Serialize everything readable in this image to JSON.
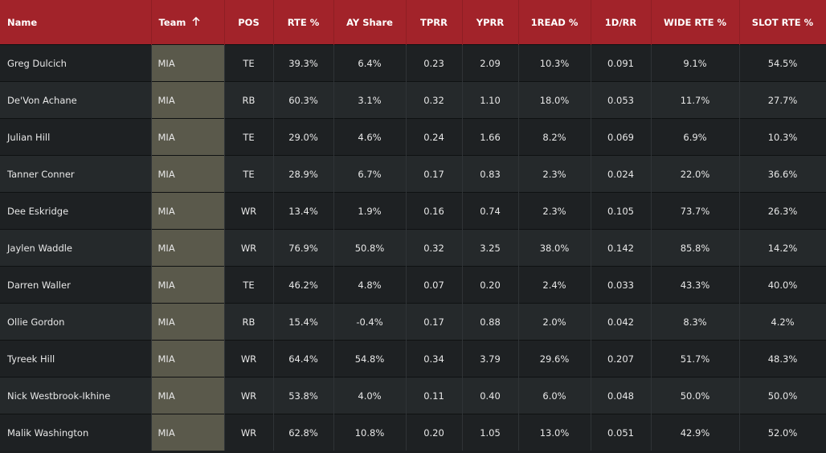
{
  "header": {
    "columns": [
      "Name",
      "Team",
      "POS",
      "RTE %",
      "AY Share",
      "TPRR",
      "YPRR",
      "1READ %",
      "1D/RR",
      "WIDE RTE %",
      "SLOT RTE %"
    ]
  },
  "table": {
    "rows": [
      [
        "Greg Dulcich",
        "MIA",
        "TE",
        "39.3%",
        "6.4%",
        "0.23",
        "2.09",
        "10.3%",
        "0.091",
        "9.1%",
        "54.5%"
      ],
      [
        "De'Von Achane",
        "MIA",
        "RB",
        "60.3%",
        "3.1%",
        "0.32",
        "1.10",
        "18.0%",
        "0.053",
        "11.7%",
        "27.7%"
      ],
      [
        "Julian Hill",
        "MIA",
        "TE",
        "29.0%",
        "4.6%",
        "0.24",
        "1.66",
        "8.2%",
        "0.069",
        "6.9%",
        "10.3%"
      ],
      [
        "Tanner Conner",
        "MIA",
        "TE",
        "28.9%",
        "6.7%",
        "0.17",
        "0.83",
        "2.3%",
        "0.024",
        "22.0%",
        "36.6%"
      ],
      [
        "Dee Eskridge",
        "MIA",
        "WR",
        "13.4%",
        "1.9%",
        "0.16",
        "0.74",
        "2.3%",
        "0.105",
        "73.7%",
        "26.3%"
      ],
      [
        "Jaylen Waddle",
        "MIA",
        "WR",
        "76.9%",
        "50.8%",
        "0.32",
        "3.25",
        "38.0%",
        "0.142",
        "85.8%",
        "14.2%"
      ],
      [
        "Darren Waller",
        "MIA",
        "TE",
        "46.2%",
        "4.8%",
        "0.07",
        "0.20",
        "2.4%",
        "0.033",
        "43.3%",
        "40.0%"
      ],
      [
        "Ollie Gordon",
        "MIA",
        "RB",
        "15.4%",
        "-0.4%",
        "0.17",
        "0.88",
        "2.0%",
        "0.042",
        "8.3%",
        "4.2%"
      ],
      [
        "Tyreek Hill",
        "MIA",
        "WR",
        "64.4%",
        "54.8%",
        "0.34",
        "3.79",
        "29.6%",
        "0.207",
        "51.7%",
        "48.3%"
      ],
      [
        "Nick Westbrook-Ikhine",
        "MIA",
        "WR",
        "53.8%",
        "4.0%",
        "0.11",
        "0.40",
        "6.0%",
        "0.048",
        "50.0%",
        "50.0%"
      ],
      [
        "Malik Washington",
        "MIA",
        "WR",
        "62.8%",
        "10.8%",
        "0.20",
        "1.05",
        "13.0%",
        "0.051",
        "42.9%",
        "52.0%"
      ]
    ]
  }
}
